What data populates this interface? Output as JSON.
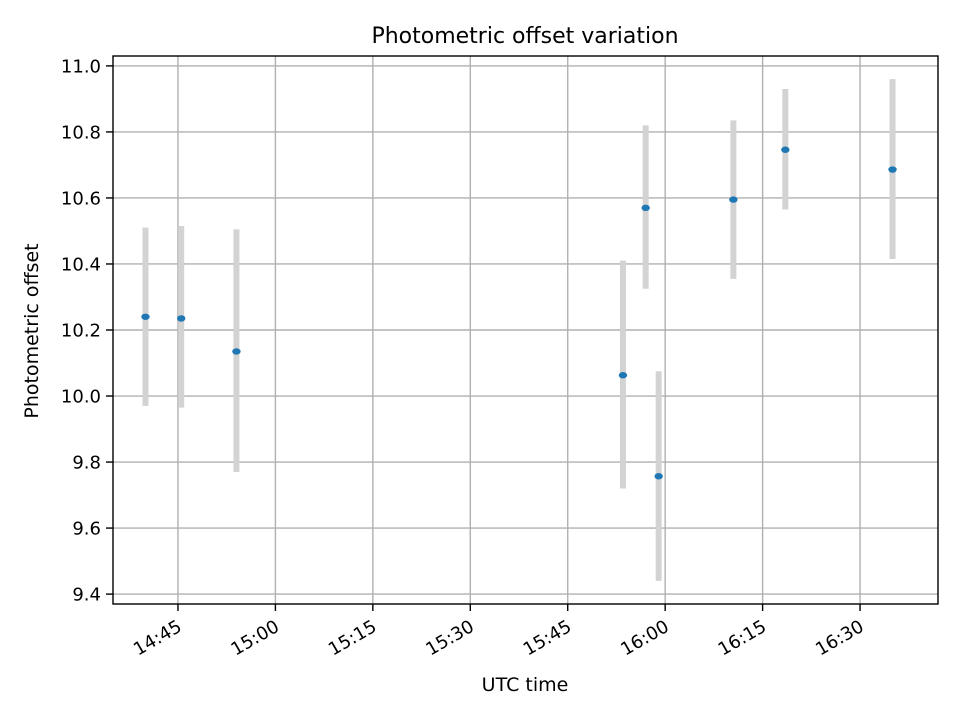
{
  "chart_data": {
    "type": "scatter",
    "title": "Photometric offset variation",
    "xlabel": "UTC time",
    "ylabel": "Photometric offset",
    "xlim": [
      "14:35",
      "16:42"
    ],
    "ylim": [
      9.37,
      11.03
    ],
    "grid": true,
    "x_ticks": [
      "14:45",
      "15:00",
      "15:15",
      "15:30",
      "15:45",
      "16:00",
      "16:15",
      "16:30"
    ],
    "y_ticks": [
      9.4,
      9.6,
      9.8,
      10.0,
      10.2,
      10.4,
      10.6,
      10.8,
      11.0
    ],
    "colors": {
      "point": "#1f77b4",
      "errorbar": "#d3d3d3",
      "grid": "#b0b0b0"
    },
    "points": [
      {
        "x": "14:40",
        "y": 10.24,
        "ylow": 9.97,
        "yhigh": 10.51
      },
      {
        "x": "14:45.5",
        "y": 10.235,
        "ylow": 9.965,
        "yhigh": 10.515
      },
      {
        "x": "14:54",
        "y": 10.135,
        "ylow": 9.77,
        "yhigh": 10.505
      },
      {
        "x": "15:53.5",
        "y": 10.063,
        "ylow": 9.72,
        "yhigh": 10.41
      },
      {
        "x": "15:57",
        "y": 10.57,
        "ylow": 10.325,
        "yhigh": 10.82
      },
      {
        "x": "15:59",
        "y": 9.757,
        "ylow": 9.44,
        "yhigh": 10.075
      },
      {
        "x": "16:10.5",
        "y": 10.595,
        "ylow": 10.355,
        "yhigh": 10.835
      },
      {
        "x": "16:18.5",
        "y": 10.746,
        "ylow": 10.565,
        "yhigh": 10.93
      },
      {
        "x": "16:35",
        "y": 10.686,
        "ylow": 10.415,
        "yhigh": 10.96
      }
    ]
  }
}
